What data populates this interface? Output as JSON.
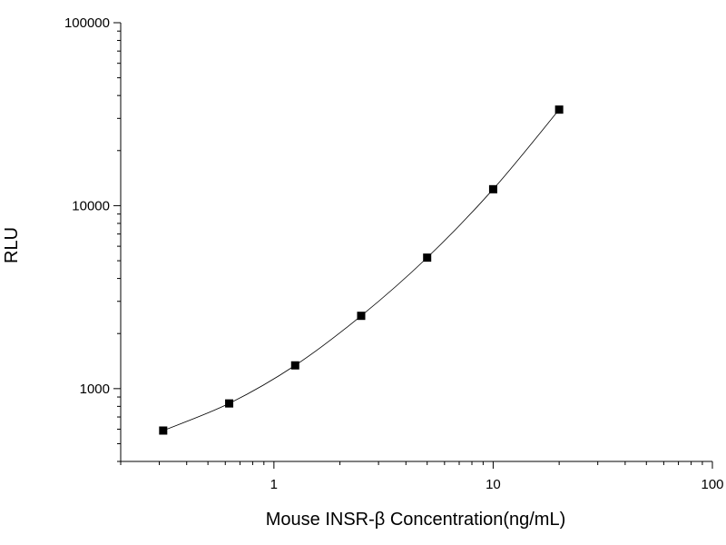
{
  "chart_data": {
    "type": "line",
    "title": "",
    "xlabel": "Mouse  INSR-β  Concentration(ng/mL)",
    "ylabel": "RLU",
    "xscale": "log",
    "yscale": "log",
    "xlim": [
      0.2,
      100
    ],
    "ylim": [
      400,
      100000
    ],
    "x_tick_labels": [
      "1",
      "10",
      "100"
    ],
    "y_tick_labels": [
      "1000",
      "10000",
      "100000"
    ],
    "grid": false,
    "legend": "none",
    "marker": "square",
    "series": [
      {
        "x": [
          0.3125,
          0.625,
          1.25,
          2.5,
          5,
          10,
          20
        ],
        "values": [
          590,
          830,
          1340,
          2500,
          5200,
          12300,
          33500
        ]
      }
    ],
    "line_color": "#000000",
    "marker_color": "#000000"
  }
}
